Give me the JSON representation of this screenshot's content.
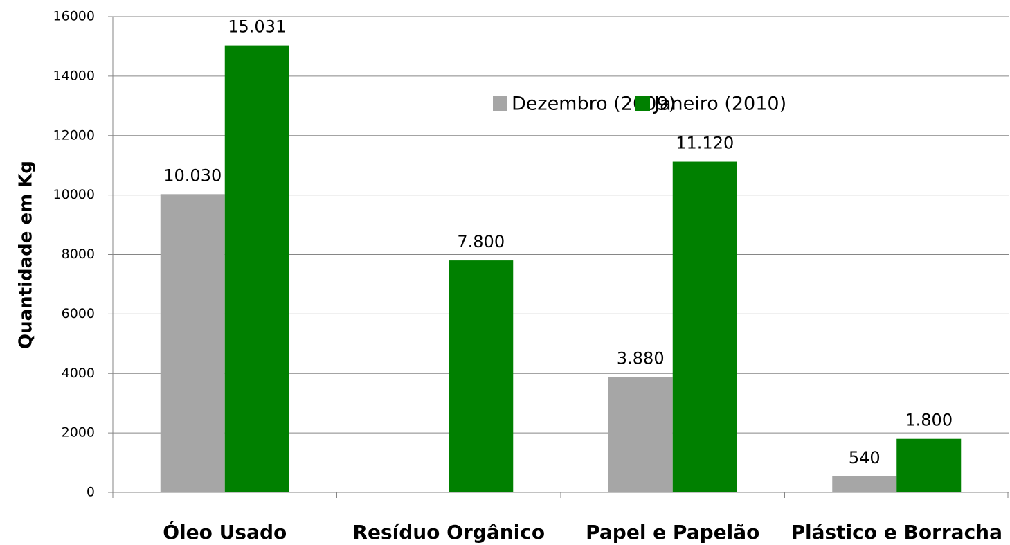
{
  "chart_data": {
    "type": "bar",
    "y_label": "Quantidade em Kg",
    "categories": [
      "Óleo Usado",
      "Resíduo Orgânico",
      "Papel e Papelão",
      "Plástico e Borracha"
    ],
    "series": [
      {
        "name": "Dezembro (2009)",
        "color": "#a6a6a6",
        "values": [
          10030,
          null,
          3880,
          540
        ],
        "value_labels": [
          "10.030",
          null,
          "3.880",
          "540"
        ]
      },
      {
        "name": "Janeiro (2010)",
        "color": "#008000",
        "values": [
          15031,
          7800,
          11120,
          1800
        ],
        "value_labels": [
          "15.031",
          "7.800",
          "11.120",
          "1.800"
        ]
      }
    ],
    "ylim": [
      0,
      16000
    ],
    "yticks": [
      0,
      2000,
      4000,
      6000,
      8000,
      10000,
      12000,
      14000,
      16000
    ],
    "grid": true,
    "legend": "top-right"
  }
}
